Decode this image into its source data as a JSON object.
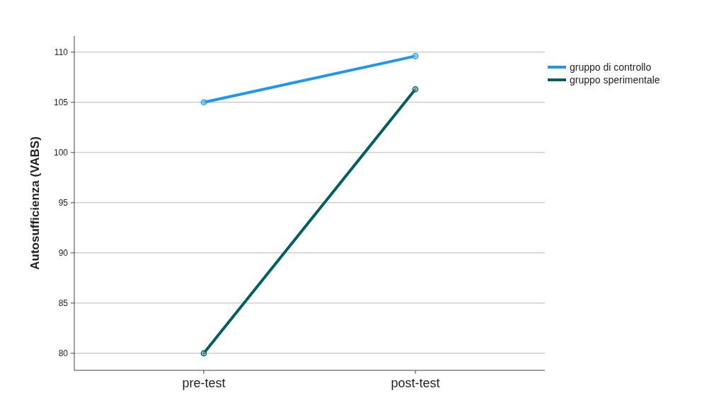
{
  "chart_data": {
    "type": "line",
    "ylabel": "Autosufficienza (VABS)",
    "categories": [
      "pre-test",
      "post-test"
    ],
    "series": [
      {
        "name": "gruppo di controllo",
        "color": "#1f97ee",
        "values": [
          105,
          109.6
        ]
      },
      {
        "name": "gruppo sperimentale",
        "color": "#00605f",
        "values": [
          80,
          106.3
        ]
      }
    ],
    "ylim": [
      78.3,
      111.6
    ],
    "yticks": [
      80,
      85,
      90,
      95,
      100,
      105,
      110
    ],
    "grid": "y",
    "legend": "top right",
    "marker": "circle",
    "line_style": "solid"
  }
}
